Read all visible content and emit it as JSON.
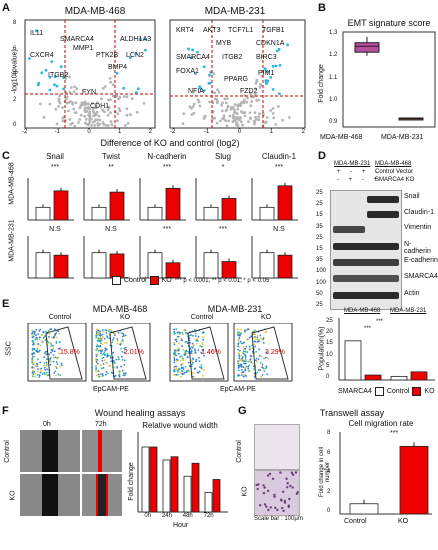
{
  "panels": {
    "A": {
      "label": "A",
      "left": {
        "title": "MDA-MB-468",
        "genes": [
          "IL11",
          "SMARCA4",
          "ALDH1A3",
          "MMP1",
          "CXCR4",
          "PTK2B",
          "LCN2",
          "BMP4",
          "ITGB2",
          "FYN",
          "CDH1"
        ]
      },
      "right": {
        "title": "MDA-MB-231",
        "genes": [
          "KRT4",
          "AKT3",
          "TCF7L1",
          "TGFB1",
          "MYB",
          "CDKN1A",
          "SMARCA4",
          "ITGB2",
          "BIRC3",
          "FOXA1",
          "PIM1",
          "PPARG",
          "NFIA",
          "FZD2"
        ]
      },
      "ylabel": "-log10(pvalue)",
      "xlabel": "Difference of KO and control (log2)",
      "left_xticks": [
        "-2",
        "-1",
        "0",
        "1",
        "2"
      ],
      "right_xticks": [
        "-2",
        "-1",
        "0",
        "1",
        "2"
      ],
      "yticks": [
        "0",
        "2",
        "4",
        "6",
        "8"
      ]
    },
    "B": {
      "label": "B",
      "title": "EMT signature score",
      "ylabel": "Fold change",
      "yticks": [
        "0.9",
        "1.0",
        "1.1",
        "1.2",
        "1.3"
      ],
      "categories": [
        "MDA-MB-468",
        "MDA-MB-231"
      ]
    },
    "C": {
      "label": "C",
      "row_labels": [
        "MDA-MB-468",
        "MDA-MB-231"
      ],
      "genes": [
        "Snail",
        "Twist",
        "N-cadherin",
        "Slug",
        "Claudin-1"
      ],
      "top_sig": [
        "***",
        "**",
        "***",
        "*",
        "***"
      ],
      "bottom_sig": [
        "N.S",
        "N.S",
        "***",
        "***",
        "N.S"
      ],
      "legend": {
        "control": "Control",
        "ko": "KO",
        "note": "*** p < 0.001, ** p < 0.01, * p < 0.05"
      }
    },
    "D": {
      "label": "D",
      "cells": [
        "MDA-MB-231",
        "MDA-MB-468"
      ],
      "row_labels": [
        "Control Vector",
        "SMARCA4 KO"
      ],
      "row1": [
        "+",
        "-",
        "+",
        "-"
      ],
      "row2": [
        "-",
        "+",
        "-",
        "+"
      ],
      "markers": [
        "25",
        "25",
        "15",
        "35",
        "25",
        "15",
        "35",
        "100",
        "100",
        "50",
        "25"
      ],
      "bands": [
        "Snail",
        "Claudin-1",
        "Vimentin",
        "N-cadherin",
        "E-cadherin",
        "SMARCA4",
        "Actin"
      ]
    },
    "E": {
      "label": "E",
      "left_title": "MDA-MB-468",
      "right_title": "MDA-MB-231",
      "conds": [
        "Control",
        "KO",
        "Control",
        "KO"
      ],
      "percents": [
        "15.8%",
        "2.01%",
        "1.46%",
        "3.29%"
      ],
      "ylabel": "SSC",
      "xlabel": "EpCAM-PE",
      "bar_xlabel": "SMARCA4",
      "bar_ylabel": "Population(%)",
      "bar_titles": [
        "MDA-MB-468",
        "MDA-MB-231"
      ],
      "sig": [
        "***",
        "***"
      ],
      "yticks": [
        "0",
        "5",
        "10",
        "15",
        "20",
        "25"
      ],
      "legend": [
        "Control",
        "KO"
      ]
    },
    "F": {
      "label": "F",
      "title": "Wound healing assays",
      "times": [
        "0h",
        "72h"
      ],
      "rows": [
        "Control",
        "KO"
      ],
      "chart_title": "Relative wound width",
      "ylabel": "Fold change",
      "xlabel": "Hour",
      "xticks": [
        "0h",
        "24h",
        "48h",
        "72h"
      ],
      "sig": [
        "*",
        "**",
        "**"
      ],
      "yticks": [
        "0",
        "0.2",
        "0.4",
        "0.6",
        "0.8",
        "1",
        "1.2"
      ]
    },
    "G": {
      "label": "G",
      "title": "Transwell assay",
      "rows": [
        "Control",
        "KO"
      ],
      "scale": "Scale bar : 100μm",
      "chart_title": "Cell migration rate",
      "ylabel": "Fold change in cell number",
      "categories": [
        "Control",
        "KO"
      ],
      "sig": "***",
      "yticks": [
        "0",
        "2",
        "4",
        "6",
        "8"
      ]
    }
  },
  "chart_data": [
    {
      "type": "box",
      "panel": "B",
      "categories": [
        "MDA-MB-468",
        "MDA-MB-231"
      ],
      "values": [
        {
          "min": 1.2,
          "q1": 1.215,
          "median": 1.24,
          "q3": 1.255,
          "max": 1.28
        },
        {
          "min": 0.93,
          "q1": 0.932,
          "median": 0.935,
          "q3": 0.938,
          "max": 0.94
        }
      ],
      "ylim": [
        0.9,
        1.3
      ]
    },
    {
      "type": "bar",
      "panel": "C",
      "categories": [
        "Snail",
        "Twist",
        "N-cadherin",
        "Slug",
        "Claudin-1"
      ],
      "series": [
        {
          "name": "Control",
          "values": [
            1,
            1,
            1,
            1,
            1
          ]
        },
        {
          "name": "KO",
          "values": [
            2.3,
            2.2,
            2.5,
            1.7,
            2.7
          ]
        }
      ],
      "row": "MDA-MB-468"
    },
    {
      "type": "bar",
      "panel": "C",
      "categories": [
        "Snail",
        "Twist",
        "N-cadherin",
        "Slug",
        "Claudin-1"
      ],
      "series": [
        {
          "name": "Control",
          "values": [
            1,
            1,
            1,
            1,
            1
          ]
        },
        {
          "name": "KO",
          "values": [
            0.9,
            0.95,
            0.6,
            0.65,
            0.9
          ]
        }
      ],
      "row": "MDA-MB-231"
    },
    {
      "type": "bar",
      "panel": "E",
      "categories": [
        "MDA-MB-468",
        "MDA-MB-231"
      ],
      "series": [
        {
          "name": "Control",
          "values": [
            15.8,
            1.46
          ]
        },
        {
          "name": "KO",
          "values": [
            2.01,
            3.29
          ]
        }
      ],
      "ylim": [
        0,
        25
      ]
    },
    {
      "type": "bar",
      "panel": "F",
      "categories": [
        "0h",
        "24h",
        "48h",
        "72h"
      ],
      "series": [
        {
          "name": "Control",
          "values": [
            1,
            0.8,
            0.55,
            0.3
          ]
        },
        {
          "name": "KO",
          "values": [
            1,
            0.85,
            0.75,
            0.5
          ]
        }
      ],
      "ylim": [
        0,
        1.2
      ]
    },
    {
      "type": "bar",
      "panel": "G",
      "categories": [
        "Control",
        "KO"
      ],
      "values": [
        1,
        6.6
      ],
      "ylim": [
        0,
        8
      ]
    }
  ]
}
